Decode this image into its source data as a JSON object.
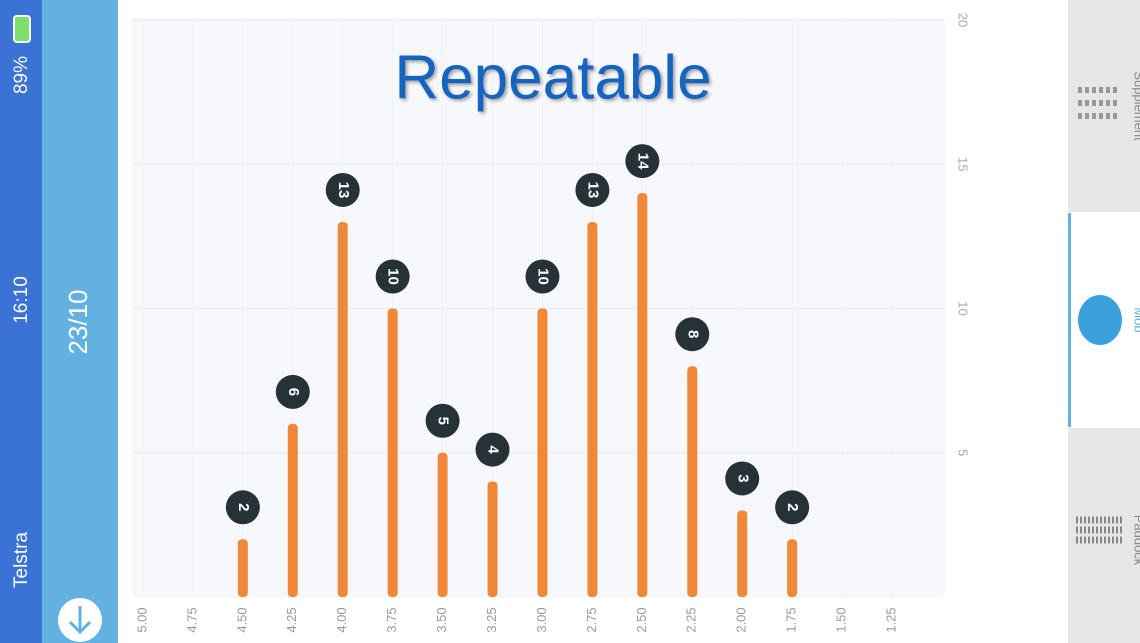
{
  "status_bar": {
    "carrier": "Telstra",
    "time": "16:10",
    "battery": "89%"
  },
  "header": {
    "date": "23/10"
  },
  "tabs": [
    "Supplement",
    "Mob",
    "Paddock"
  ],
  "chart_data": {
    "type": "bar",
    "title": "Repeatable",
    "categories": [
      "5.00",
      "4.75",
      "4.50",
      "4.25",
      "4.00",
      "3.75",
      "3.50",
      "3.25",
      "3.00",
      "2.75",
      "2.50",
      "2.25",
      "2.00",
      "1.75",
      "1.50",
      "1.25"
    ],
    "values": [
      null,
      null,
      2,
      6,
      13,
      10,
      5,
      4,
      10,
      13,
      14,
      8,
      3,
      2,
      null,
      null
    ],
    "color": "#f0883a",
    "ylim": [
      0,
      20
    ],
    "yticks": [
      5,
      10,
      15,
      20
    ],
    "grid": true
  }
}
